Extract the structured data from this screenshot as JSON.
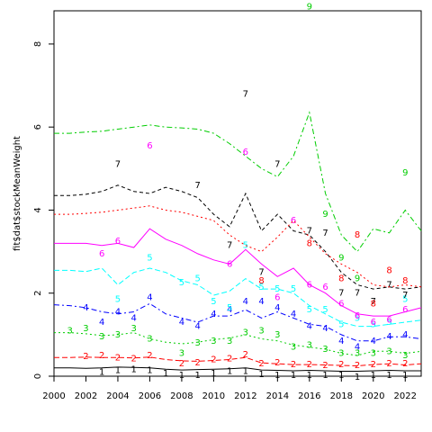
{
  "chart_data": {
    "type": "line",
    "title": "",
    "xlabel": "",
    "ylabel": "fit$dat$stockMeanWeight",
    "xlim": [
      2000,
      2023
    ],
    "ylim": [
      0,
      8.8
    ],
    "x_ticks": [
      "2000",
      "2002",
      "2004",
      "2006",
      "2008",
      "2010",
      "2012",
      "2014",
      "2016",
      "2018",
      "2020",
      "2022"
    ],
    "y_ticks": [
      "0",
      "2",
      "4",
      "6",
      "8"
    ],
    "grid": false,
    "legend": "none",
    "series": [
      {
        "label": "1",
        "color": "#000000",
        "dash": "",
        "line_x": [
          2000,
          2001,
          2002,
          2003,
          2004,
          2005,
          2006,
          2007,
          2008,
          2009,
          2010,
          2011,
          2012,
          2013,
          2014,
          2015,
          2016,
          2017,
          2018,
          2019,
          2020,
          2021,
          2022,
          2023
        ],
        "line_y": [
          0.2,
          0.2,
          0.19,
          0.2,
          0.22,
          0.21,
          0.2,
          0.17,
          0.15,
          0.16,
          0.17,
          0.18,
          0.2,
          0.15,
          0.14,
          0.13,
          0.14,
          0.13,
          0.12,
          0.12,
          0.13,
          0.14,
          0.13,
          0.13
        ],
        "points_x": [
          2003,
          2004,
          2005,
          2006,
          2007,
          2008,
          2009,
          2010,
          2011,
          2012,
          2013,
          2014,
          2015,
          2016,
          2017,
          2018,
          2019,
          2020,
          2021,
          2022
        ],
        "points_y": [
          0.1,
          0.14,
          0.16,
          0.14,
          0.06,
          0.02,
          0.02,
          0.06,
          0.12,
          0.12,
          0.04,
          0.02,
          0.02,
          0.02,
          0.02,
          0.02,
          -0.02,
          0.02,
          0.02,
          0.02
        ]
      },
      {
        "label": "2",
        "color": "#ff0000",
        "dash": "6,3",
        "line_x": [
          2000,
          2001,
          2002,
          2003,
          2004,
          2005,
          2006,
          2007,
          2008,
          2009,
          2010,
          2011,
          2012,
          2013,
          2014,
          2015,
          2016,
          2017,
          2018,
          2019,
          2020,
          2021,
          2022,
          2023
        ],
        "line_y": [
          0.45,
          0.45,
          0.46,
          0.45,
          0.45,
          0.44,
          0.46,
          0.4,
          0.37,
          0.36,
          0.38,
          0.4,
          0.45,
          0.32,
          0.3,
          0.28,
          0.28,
          0.27,
          0.26,
          0.25,
          0.28,
          0.3,
          0.27,
          0.3
        ],
        "points_x": [
          2002,
          2003,
          2004,
          2005,
          2006,
          2008,
          2009,
          2010,
          2011,
          2012,
          2013,
          2014,
          2015,
          2016,
          2017,
          2018,
          2019,
          2020,
          2021,
          2022
        ],
        "points_y": [
          0.48,
          0.5,
          0.44,
          0.42,
          0.5,
          0.3,
          0.32,
          0.4,
          0.42,
          0.52,
          0.3,
          0.32,
          0.28,
          0.28,
          0.26,
          0.28,
          0.26,
          0.28,
          0.3,
          0.3
        ]
      },
      {
        "label": "3",
        "color": "#00cd00",
        "dash": "2,3",
        "line_x": [
          2000,
          2001,
          2002,
          2003,
          2004,
          2005,
          2006,
          2007,
          2008,
          2009,
          2010,
          2011,
          2012,
          2013,
          2014,
          2015,
          2016,
          2017,
          2018,
          2019,
          2020,
          2021,
          2022,
          2023
        ],
        "line_y": [
          1.05,
          1.05,
          1.02,
          0.98,
          1.0,
          1.05,
          0.9,
          0.82,
          0.78,
          0.82,
          0.88,
          0.92,
          1.0,
          0.9,
          0.85,
          0.75,
          0.7,
          0.65,
          0.55,
          0.5,
          0.6,
          0.6,
          0.55,
          0.6
        ],
        "points_x": [
          2001,
          2002,
          2003,
          2004,
          2005,
          2006,
          2008,
          2009,
          2010,
          2011,
          2012,
          2013,
          2014,
          2015,
          2016,
          2017,
          2018,
          2019,
          2020,
          2021,
          2022
        ],
        "points_y": [
          1.1,
          1.15,
          0.95,
          1.0,
          1.15,
          0.9,
          0.55,
          0.8,
          0.85,
          0.85,
          1.05,
          1.1,
          1.0,
          0.7,
          0.75,
          0.65,
          0.55,
          0.55,
          0.55,
          0.6,
          0.5
        ]
      },
      {
        "label": "4",
        "color": "#0000ff",
        "dash": "6,3,2,3",
        "line_x": [
          2000,
          2001,
          2002,
          2003,
          2004,
          2005,
          2006,
          2007,
          2008,
          2009,
          2010,
          2011,
          2012,
          2013,
          2014,
          2015,
          2016,
          2017,
          2018,
          2019,
          2020,
          2021,
          2022,
          2023
        ],
        "line_y": [
          1.72,
          1.7,
          1.65,
          1.55,
          1.5,
          1.55,
          1.75,
          1.5,
          1.4,
          1.3,
          1.45,
          1.45,
          1.6,
          1.4,
          1.55,
          1.4,
          1.25,
          1.2,
          1.0,
          0.85,
          0.85,
          0.95,
          0.95,
          0.9
        ],
        "points_x": [
          2002,
          2003,
          2004,
          2005,
          2006,
          2008,
          2009,
          2010,
          2011,
          2012,
          2013,
          2014,
          2015,
          2016,
          2017,
          2018,
          2019,
          2020,
          2021,
          2022
        ],
        "points_y": [
          1.65,
          1.3,
          1.55,
          1.4,
          1.9,
          1.3,
          1.2,
          1.5,
          1.6,
          1.8,
          1.8,
          1.65,
          1.5,
          1.2,
          1.15,
          0.85,
          0.7,
          0.85,
          0.95,
          1.0
        ]
      },
      {
        "label": "5",
        "color": "#00ffff",
        "dash": "6,3",
        "line_x": [
          2000,
          2001,
          2002,
          2003,
          2004,
          2005,
          2006,
          2007,
          2008,
          2009,
          2010,
          2011,
          2012,
          2013,
          2014,
          2015,
          2016,
          2017,
          2018,
          2019,
          2020,
          2021,
          2022,
          2023
        ],
        "line_y": [
          2.55,
          2.55,
          2.52,
          2.6,
          2.2,
          2.5,
          2.6,
          2.5,
          2.3,
          2.2,
          1.95,
          2.05,
          2.35,
          2.1,
          2.1,
          2.0,
          1.7,
          1.5,
          1.3,
          1.2,
          1.2,
          1.25,
          1.3,
          1.35
        ],
        "points_x": [
          2004,
          2006,
          2008,
          2009,
          2010,
          2011,
          2012,
          2013,
          2014,
          2015,
          2016,
          2017,
          2018,
          2019,
          2020,
          2021,
          2022
        ],
        "points_y": [
          1.85,
          2.85,
          2.25,
          2.35,
          1.8,
          1.65,
          3.15,
          2.15,
          2.1,
          2.1,
          1.6,
          1.6,
          1.25,
          1.4,
          1.25,
          1.3,
          1.85
        ]
      },
      {
        "label": "6",
        "color": "#ff00ff",
        "dash": "",
        "line_x": [
          2000,
          2001,
          2002,
          2003,
          2004,
          2005,
          2006,
          2007,
          2008,
          2009,
          2010,
          2011,
          2012,
          2013,
          2014,
          2015,
          2016,
          2017,
          2018,
          2019,
          2020,
          2021,
          2022,
          2023
        ],
        "line_y": [
          3.2,
          3.2,
          3.2,
          3.15,
          3.2,
          3.1,
          3.55,
          3.3,
          3.15,
          2.95,
          2.8,
          2.7,
          3.05,
          2.7,
          2.4,
          2.6,
          2.2,
          2.0,
          1.7,
          1.5,
          1.45,
          1.45,
          1.55,
          1.65
        ],
        "points_x": [
          2003,
          2004,
          2006,
          2011,
          2012,
          2014,
          2015,
          2016,
          2017,
          2018,
          2019,
          2020,
          2021,
          2022
        ],
        "points_y": [
          2.95,
          3.25,
          5.55,
          2.7,
          5.4,
          1.9,
          3.75,
          2.2,
          2.15,
          1.75,
          1.45,
          1.3,
          1.35,
          1.6
        ]
      },
      {
        "label": "7",
        "color": "#000000",
        "dash": "4,3",
        "line_x": [
          2000,
          2001,
          2002,
          2003,
          2004,
          2005,
          2006,
          2007,
          2008,
          2009,
          2010,
          2011,
          2012,
          2013,
          2014,
          2015,
          2016,
          2017,
          2018,
          2019,
          2020,
          2021,
          2022,
          2023
        ],
        "line_y": [
          4.35,
          4.35,
          4.38,
          4.45,
          4.6,
          4.45,
          4.4,
          4.55,
          4.45,
          4.3,
          3.9,
          3.6,
          4.4,
          3.5,
          3.9,
          3.5,
          3.4,
          3.0,
          2.5,
          2.2,
          2.1,
          2.15,
          2.1,
          2.15
        ],
        "points_x": [
          2004,
          2009,
          2011,
          2012,
          2013,
          2014,
          2016,
          2017,
          2018,
          2019,
          2020,
          2021,
          2022
        ],
        "points_y": [
          5.1,
          4.6,
          3.15,
          6.8,
          2.5,
          5.1,
          3.5,
          3.45,
          2.0,
          2.0,
          1.8,
          2.2,
          1.95
        ]
      },
      {
        "label": "8",
        "color": "#ff0000",
        "dash": "2,3",
        "line_x": [
          2000,
          2001,
          2002,
          2003,
          2004,
          2005,
          2006,
          2007,
          2008,
          2009,
          2010,
          2011,
          2012,
          2013,
          2014,
          2015,
          2016,
          2017,
          2018,
          2019,
          2020,
          2021,
          2022,
          2023
        ],
        "line_y": [
          3.9,
          3.9,
          3.92,
          3.95,
          4.0,
          4.05,
          4.1,
          4.0,
          3.95,
          3.85,
          3.75,
          3.4,
          3.15,
          3.0,
          3.35,
          3.75,
          3.35,
          2.95,
          2.7,
          2.5,
          2.2,
          2.15,
          2.2,
          2.15
        ],
        "points_x": [
          2013,
          2016,
          2018,
          2019,
          2020,
          2021,
          2022
        ],
        "points_y": [
          2.3,
          3.2,
          2.35,
          3.4,
          1.75,
          2.55,
          2.3
        ]
      },
      {
        "label": "9",
        "color": "#00cd00",
        "dash": "6,3,2,3",
        "line_x": [
          2000,
          2001,
          2002,
          2003,
          2004,
          2005,
          2006,
          2007,
          2008,
          2009,
          2010,
          2011,
          2012,
          2013,
          2014,
          2015,
          2016,
          2017,
          2018,
          2019,
          2020,
          2021,
          2022,
          2023
        ],
        "line_y": [
          5.85,
          5.85,
          5.88,
          5.9,
          5.95,
          6.0,
          6.05,
          6.0,
          5.98,
          5.95,
          5.85,
          5.6,
          5.3,
          5.0,
          4.8,
          5.3,
          6.35,
          4.4,
          3.4,
          3.0,
          3.55,
          3.45,
          4.0,
          3.5
        ],
        "points_x": [
          2016,
          2017,
          2018,
          2019,
          2022
        ],
        "points_y": [
          8.9,
          3.9,
          2.85,
          2.35,
          4.9
        ]
      }
    ]
  }
}
